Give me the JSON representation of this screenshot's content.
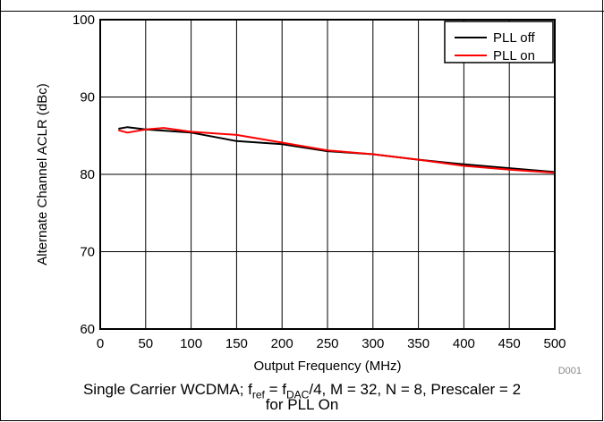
{
  "chart_data": {
    "type": "line",
    "xlabel": "Output Frequency (MHz)",
    "ylabel": "Alternate Channel ACLR (dBc)",
    "xlim": [
      0,
      500
    ],
    "ylim": [
      60,
      100
    ],
    "xticks": [
      0,
      50,
      100,
      150,
      200,
      250,
      300,
      350,
      400,
      450,
      500
    ],
    "yticks": [
      60,
      70,
      80,
      90,
      100
    ],
    "grid": true,
    "legend_position": "top-right",
    "series": [
      {
        "name": "PLL off",
        "color": "#000000",
        "x": [
          20,
          30,
          50,
          100,
          150,
          200,
          250,
          300,
          350,
          400,
          450,
          500
        ],
        "y": [
          85.9,
          86.1,
          85.8,
          85.4,
          84.3,
          83.9,
          83.0,
          82.6,
          81.9,
          81.3,
          80.8,
          80.3
        ]
      },
      {
        "name": "PLL on",
        "color": "#ff0000",
        "x": [
          20,
          30,
          50,
          70,
          100,
          150,
          200,
          250,
          300,
          350,
          400,
          450,
          500
        ],
        "y": [
          85.7,
          85.4,
          85.8,
          86.0,
          85.5,
          85.1,
          84.1,
          83.1,
          82.6,
          81.9,
          81.1,
          80.6,
          80.2
        ]
      }
    ]
  },
  "figure_code": "D001",
  "caption": {
    "prefix": "Single Carrier WCDMA; f",
    "sub1": "ref",
    "mid1": " = f",
    "sub2": "DAC",
    "suffix": "/4, M = 32, N = 8, Prescaler = 2",
    "line2": "for PLL On"
  }
}
